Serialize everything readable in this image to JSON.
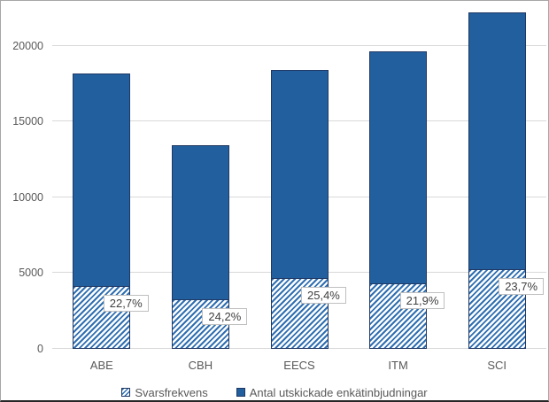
{
  "chart_data": {
    "type": "bar",
    "stacked_overlay": true,
    "title": "",
    "xlabel": "",
    "ylabel": "",
    "categories": [
      "ABE",
      "CBH",
      "EECS",
      "ITM",
      "SCI"
    ],
    "series": [
      {
        "name": "Svarsfrekvens",
        "style": "hatched",
        "values": [
          4130,
          3255,
          4675,
          4305,
          5260
        ],
        "percent_labels": [
          "22,7%",
          "24,2%",
          "25,4%",
          "21,9%",
          "23,7%"
        ]
      },
      {
        "name": "Antal utskickade enkätinbjudningar",
        "style": "solid",
        "values": [
          18200,
          13450,
          18400,
          19650,
          22200
        ]
      }
    ],
    "yticks": [
      0,
      5000,
      10000,
      15000,
      20000
    ],
    "ytick_labels": [
      "0",
      "5000",
      "10000",
      "15000",
      "20000"
    ],
    "ylim": [
      0,
      22500
    ],
    "grid": true,
    "legend_position": "bottom"
  },
  "colors": {
    "bar_fill": "#215f9e",
    "bar_border": "#203864",
    "hatch_color": "#2f6fb2",
    "grid": "#d9d9d9",
    "axis_text": "#595959",
    "data_label_text": "#404040",
    "data_label_border": "#bfbfbf",
    "chart_border": "#a6a6a6",
    "chart_border_bottom": "#262626"
  }
}
